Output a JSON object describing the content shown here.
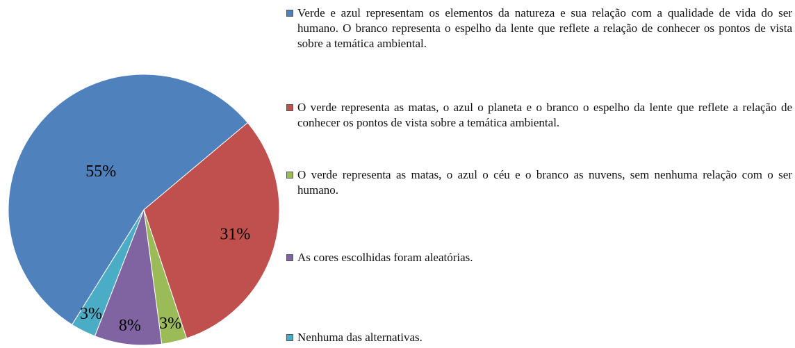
{
  "chart_data": {
    "type": "pie",
    "series": [
      {
        "name": "Verde e azul representam os elementos da natureza e sua relação com a qualidade de vida do ser humano. O branco representa o espelho da lente que reflete a relação de conhecer os pontos de vista sobre a temática ambiental.",
        "color": "#4f81bd"
      },
      {
        "name": "O verde representa as matas, o azul o planeta e o branco o espelho da lente que reflete a relação de conhecer os pontos de vista sobre a temática ambiental.",
        "color": "#c0504d"
      },
      {
        "name": "O verde representa as matas, o azul o céu e o branco as nuvens, sem nenhuma relação com o ser humano.",
        "color": "#9bbb59"
      },
      {
        "name": "As cores escolhidas foram aleatórias.",
        "color": "#8064a2"
      },
      {
        "name": "Nenhuma das alternativas.",
        "color": "#4bacc6"
      }
    ],
    "values": [
      55,
      31,
      3,
      8,
      3
    ],
    "value_labels": [
      "55%",
      "31%",
      "3%",
      "8%",
      "3%"
    ],
    "legend": "right"
  }
}
